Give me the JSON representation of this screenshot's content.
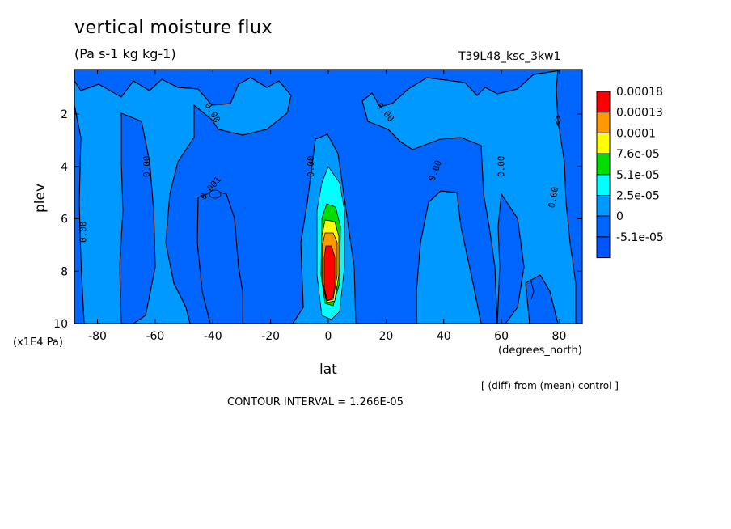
{
  "header": {
    "title": "vertical moisture flux",
    "units": "(Pa s-1 kg kg-1)",
    "run_id": "T39L48_ksc_3kw1"
  },
  "footer": {
    "diff_note": "[ (diff) from (mean) control ]",
    "contour_interval": "CONTOUR INTERVAL = 1.266E-05"
  },
  "chart_data": {
    "type": "heatmap",
    "title": "vertical moisture flux",
    "subtitle": "(Pa s-1 kg kg-1)",
    "xlabel": "lat",
    "xunit": "(degrees_north)",
    "ylabel": "plev",
    "yunit": "(x1E4 Pa)",
    "xlim": [
      -88,
      88
    ],
    "ylim": [
      10,
      0.3
    ],
    "x_ticks": [
      -80,
      -60,
      -40,
      -20,
      0,
      20,
      40,
      60,
      80
    ],
    "y_ticks": [
      2,
      4,
      6,
      8,
      10
    ],
    "contour_interval": 1.266e-05,
    "legend": {
      "position": "right",
      "levels": [
        "0.00018",
        "0.00013",
        "0.0001",
        "7.6e-05",
        "5.1e-05",
        "2.5e-05",
        "0",
        "-5.1e-05"
      ],
      "colors": [
        "#ff0000",
        "#ff9900",
        "#ffff00",
        "#00dd00",
        "#00ffff",
        "#0099ff",
        "#0066ff",
        "#0055ff"
      ]
    },
    "contour_labels": [
      {
        "text": "0.00",
        "x": -84,
        "y": 6.5,
        "rotate": -90
      },
      {
        "text": "0.00",
        "x": -62,
        "y": 4.0,
        "rotate": -90
      },
      {
        "text": "0.00",
        "x": -41,
        "y": 2.0,
        "rotate": 60
      },
      {
        "text": "0.001",
        "x": -40,
        "y": 4.9,
        "rotate": -50
      },
      {
        "text": "0.00",
        "x": -5,
        "y": 4.0,
        "rotate": -90
      },
      {
        "text": "0.00",
        "x": 19,
        "y": 2.0,
        "rotate": 50
      },
      {
        "text": "0.00",
        "x": 38,
        "y": 4.2,
        "rotate": -70
      },
      {
        "text": "0.00",
        "x": 61,
        "y": 4.0,
        "rotate": -90
      },
      {
        "text": "0.00",
        "x": 79,
        "y": 5.2,
        "rotate": -80
      }
    ]
  }
}
